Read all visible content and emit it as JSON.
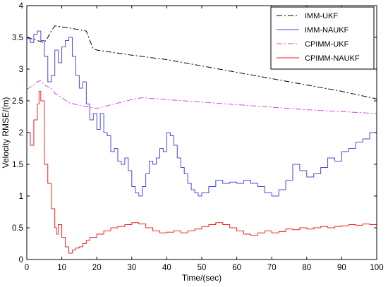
{
  "chart_data": {
    "type": "line",
    "title": "",
    "xlabel": "Time/(sec)",
    "ylabel": "Velocity RMSE/(m)",
    "xlim": [
      0,
      100
    ],
    "ylim": [
      0,
      4
    ],
    "x_ticks": [
      0,
      10,
      20,
      30,
      40,
      50,
      60,
      70,
      80,
      90,
      100
    ],
    "y_ticks": [
      0,
      0.5,
      1,
      1.5,
      2,
      2.5,
      3,
      3.5,
      4
    ],
    "x_tick_labels": [
      "0",
      "10",
      "20",
      "30",
      "40",
      "50",
      "60",
      "70",
      "80",
      "90",
      "100"
    ],
    "y_tick_labels": [
      "0",
      "0.5",
      "1",
      "1.5",
      "2",
      "2.5",
      "3",
      "3.5",
      "4"
    ],
    "grid": false,
    "legend": {
      "position": "top-right",
      "show": true
    },
    "series": [
      {
        "name": "IMM-UKF",
        "color": "#000000",
        "dash": "8,3,2,3",
        "stepped": false,
        "points": [
          [
            0,
            3.5
          ],
          [
            3,
            3.45
          ],
          [
            5,
            3.42
          ],
          [
            6,
            3.5
          ],
          [
            7,
            3.6
          ],
          [
            8,
            3.68
          ],
          [
            12,
            3.65
          ],
          [
            17,
            3.6
          ],
          [
            18,
            3.45
          ],
          [
            19,
            3.32
          ],
          [
            20,
            3.3
          ],
          [
            30,
            3.22
          ],
          [
            40,
            3.15
          ],
          [
            50,
            3.05
          ],
          [
            60,
            2.95
          ],
          [
            70,
            2.85
          ],
          [
            80,
            2.75
          ],
          [
            90,
            2.65
          ],
          [
            100,
            2.53
          ]
        ]
      },
      {
        "name": "IMM-NAUKF",
        "color": "#4a4ad8",
        "dash": "",
        "stepped": true,
        "points": [
          [
            0,
            3.48
          ],
          [
            1,
            3.42
          ],
          [
            2,
            3.55
          ],
          [
            3,
            3.6
          ],
          [
            4,
            3.45
          ],
          [
            5,
            3.2
          ],
          [
            6,
            2.8
          ],
          [
            7,
            2.9
          ],
          [
            8,
            3.3
          ],
          [
            9,
            3.1
          ],
          [
            10,
            3.35
          ],
          [
            11,
            3.45
          ],
          [
            12,
            3.5
          ],
          [
            13,
            3.2
          ],
          [
            14,
            2.9
          ],
          [
            15,
            2.7
          ],
          [
            16,
            2.8
          ],
          [
            17,
            2.45
          ],
          [
            18,
            2.2
          ],
          [
            19,
            2.3
          ],
          [
            20,
            2.05
          ],
          [
            21,
            2.3
          ],
          [
            22,
            2.0
          ],
          [
            23,
            1.95
          ],
          [
            24,
            1.7
          ],
          [
            25,
            1.75
          ],
          [
            26,
            1.55
          ],
          [
            27,
            1.5
          ],
          [
            28,
            1.6
          ],
          [
            29,
            1.4
          ],
          [
            30,
            1.15
          ],
          [
            31,
            1.05
          ],
          [
            32,
            1.0
          ],
          [
            33,
            1.15
          ],
          [
            34,
            1.35
          ],
          [
            35,
            1.55
          ],
          [
            36,
            1.5
          ],
          [
            37,
            1.6
          ],
          [
            38,
            1.75
          ],
          [
            39,
            1.7
          ],
          [
            40,
            2.0
          ],
          [
            41,
            1.95
          ],
          [
            42,
            1.8
          ],
          [
            43,
            1.6
          ],
          [
            44,
            1.45
          ],
          [
            45,
            1.35
          ],
          [
            46,
            1.2
          ],
          [
            47,
            1.1
          ],
          [
            48,
            1.05
          ],
          [
            49,
            1.0
          ],
          [
            50,
            1.05
          ],
          [
            52,
            1.15
          ],
          [
            54,
            1.25
          ],
          [
            56,
            1.2
          ],
          [
            58,
            1.22
          ],
          [
            60,
            1.2
          ],
          [
            62,
            1.25
          ],
          [
            64,
            1.2
          ],
          [
            66,
            1.15
          ],
          [
            68,
            1.05
          ],
          [
            70,
            1.0
          ],
          [
            72,
            1.1
          ],
          [
            74,
            1.25
          ],
          [
            76,
            1.5
          ],
          [
            78,
            1.4
          ],
          [
            80,
            1.3
          ],
          [
            82,
            1.35
          ],
          [
            84,
            1.45
          ],
          [
            86,
            1.6
          ],
          [
            88,
            1.55
          ],
          [
            90,
            1.7
          ],
          [
            92,
            1.75
          ],
          [
            94,
            1.85
          ],
          [
            96,
            1.9
          ],
          [
            98,
            2.0
          ],
          [
            100,
            1.95
          ]
        ]
      },
      {
        "name": "CPIMM-UKF",
        "color": "#e040e0",
        "dash": "8,3,2,3",
        "stepped": false,
        "points": [
          [
            0,
            2.68
          ],
          [
            2,
            2.75
          ],
          [
            3,
            2.8
          ],
          [
            4,
            2.82
          ],
          [
            5,
            2.75
          ],
          [
            7,
            2.7
          ],
          [
            8,
            2.62
          ],
          [
            10,
            2.55
          ],
          [
            12,
            2.47
          ],
          [
            15,
            2.43
          ],
          [
            18,
            2.4
          ],
          [
            20,
            2.38
          ],
          [
            25,
            2.45
          ],
          [
            30,
            2.52
          ],
          [
            33,
            2.55
          ],
          [
            40,
            2.52
          ],
          [
            50,
            2.48
          ],
          [
            60,
            2.44
          ],
          [
            70,
            2.4
          ],
          [
            80,
            2.36
          ],
          [
            90,
            2.33
          ],
          [
            100,
            2.3
          ]
        ]
      },
      {
        "name": "CPIMM-NAUKF",
        "color": "#ee2222",
        "dash": "",
        "stepped": true,
        "points": [
          [
            0,
            2.0
          ],
          [
            1,
            1.8
          ],
          [
            2,
            2.2
          ],
          [
            3,
            2.45
          ],
          [
            3.5,
            2.65
          ],
          [
            4,
            2.5
          ],
          [
            5,
            1.5
          ],
          [
            6,
            1.2
          ],
          [
            7,
            0.8
          ],
          [
            8,
            0.5
          ],
          [
            8.5,
            0.4
          ],
          [
            9,
            0.55
          ],
          [
            10,
            0.35
          ],
          [
            11,
            0.2
          ],
          [
            12,
            0.1
          ],
          [
            13,
            0.15
          ],
          [
            14,
            0.18
          ],
          [
            15,
            0.2
          ],
          [
            16,
            0.25
          ],
          [
            17,
            0.3
          ],
          [
            18,
            0.35
          ],
          [
            20,
            0.4
          ],
          [
            22,
            0.45
          ],
          [
            24,
            0.5
          ],
          [
            26,
            0.52
          ],
          [
            28,
            0.55
          ],
          [
            30,
            0.58
          ],
          [
            32,
            0.56
          ],
          [
            34,
            0.5
          ],
          [
            36,
            0.45
          ],
          [
            38,
            0.42
          ],
          [
            40,
            0.43
          ],
          [
            42,
            0.45
          ],
          [
            44,
            0.42
          ],
          [
            46,
            0.45
          ],
          [
            48,
            0.48
          ],
          [
            50,
            0.52
          ],
          [
            52,
            0.55
          ],
          [
            54,
            0.58
          ],
          [
            56,
            0.55
          ],
          [
            58,
            0.5
          ],
          [
            60,
            0.45
          ],
          [
            62,
            0.4
          ],
          [
            64,
            0.38
          ],
          [
            66,
            0.42
          ],
          [
            68,
            0.45
          ],
          [
            70,
            0.42
          ],
          [
            72,
            0.44
          ],
          [
            74,
            0.48
          ],
          [
            76,
            0.47
          ],
          [
            78,
            0.5
          ],
          [
            80,
            0.48
          ],
          [
            82,
            0.5
          ],
          [
            84,
            0.52
          ],
          [
            86,
            0.5
          ],
          [
            88,
            0.52
          ],
          [
            90,
            0.53
          ],
          [
            92,
            0.55
          ],
          [
            94,
            0.54
          ],
          [
            96,
            0.56
          ],
          [
            98,
            0.55
          ],
          [
            100,
            0.58
          ]
        ]
      }
    ]
  }
}
